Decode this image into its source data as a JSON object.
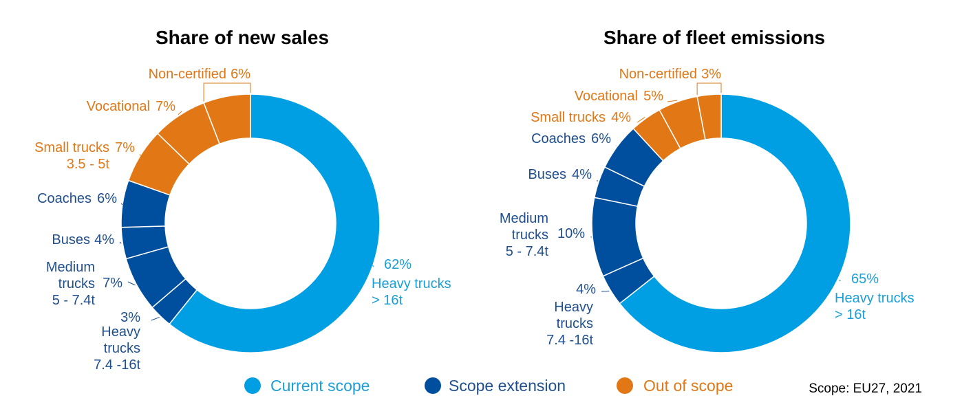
{
  "colors": {
    "current": "#009fe3",
    "extension": "#004f9e",
    "out": "#e27715",
    "text_current": "#1a9fd9",
    "text_extension": "#1f4f8f",
    "text_out": "#e27715"
  },
  "legend": [
    {
      "label": "Current scope",
      "group": "current"
    },
    {
      "label": "Scope extension",
      "group": "extension"
    },
    {
      "label": "Out of scope",
      "group": "out"
    }
  ],
  "scope_note": "Scope: EU27, 2021",
  "chart_data": [
    {
      "type": "pie",
      "title": "Share of new sales",
      "slices": [
        {
          "label_lines": [
            "Heavy trucks",
            "> 16t"
          ],
          "value": 62,
          "value_label": "62%",
          "group": "current"
        },
        {
          "label_lines": [
            "Heavy",
            "trucks",
            "7.4 -16t"
          ],
          "value": 3,
          "value_label": "3%",
          "group": "extension"
        },
        {
          "label_lines": [
            "Medium",
            "trucks",
            "5 - 7.4t"
          ],
          "value": 7,
          "value_label": "7%",
          "group": "extension"
        },
        {
          "label_lines": [
            "Buses"
          ],
          "value": 4,
          "value_label": "4%",
          "group": "extension"
        },
        {
          "label_lines": [
            "Coaches"
          ],
          "value": 6,
          "value_label": "6%",
          "group": "extension"
        },
        {
          "label_lines": [
            "Small trucks",
            "3.5 - 5t"
          ],
          "value": 7,
          "value_label": "7%",
          "group": "out"
        },
        {
          "label_lines": [
            "Vocational"
          ],
          "value": 7,
          "value_label": "7%",
          "group": "out"
        },
        {
          "label_lines": [
            "Non-certified"
          ],
          "value": 6,
          "value_label": "6%",
          "group": "out"
        }
      ]
    },
    {
      "type": "pie",
      "title": "Share of fleet emissions",
      "slices": [
        {
          "label_lines": [
            "Heavy trucks",
            "> 16t"
          ],
          "value": 65,
          "value_label": "65%",
          "group": "current"
        },
        {
          "label_lines": [
            "Heavy",
            "trucks",
            "7.4 -16t"
          ],
          "value": 4,
          "value_label": "4%",
          "group": "extension"
        },
        {
          "label_lines": [
            "Medium",
            "trucks",
            "5 - 7.4t"
          ],
          "value": 10,
          "value_label": "10%",
          "group": "extension"
        },
        {
          "label_lines": [
            "Buses"
          ],
          "value": 4,
          "value_label": "4%",
          "group": "extension"
        },
        {
          "label_lines": [
            "Coaches"
          ],
          "value": 6,
          "value_label": "6%",
          "group": "extension"
        },
        {
          "label_lines": [
            "Small trucks"
          ],
          "value": 4,
          "value_label": "4%",
          "group": "out"
        },
        {
          "label_lines": [
            "Vocational"
          ],
          "value": 5,
          "value_label": "5%",
          "group": "out"
        },
        {
          "label_lines": [
            "Non-certified"
          ],
          "value": 3,
          "value_label": "3%",
          "group": "out"
        }
      ]
    }
  ]
}
